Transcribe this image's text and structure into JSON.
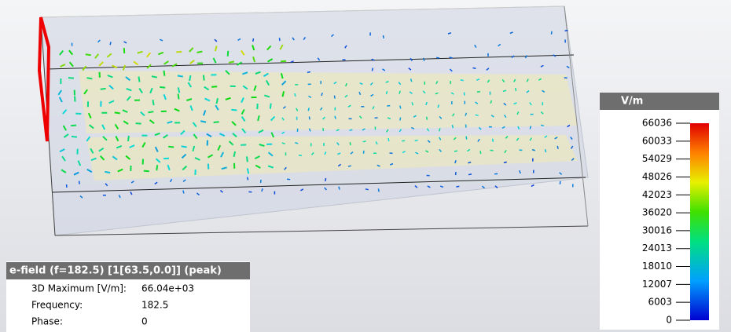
{
  "legend": {
    "title": "V/m",
    "ticks": [
      66036,
      60033,
      54029,
      48026,
      42023,
      36020,
      30016,
      24013,
      18010,
      12007,
      6003,
      0
    ]
  },
  "info": {
    "title": "e-field (f=182.5) [1[63.5,0.0]] (peak)",
    "rows": [
      [
        "3D Maximum [V/m]:",
        "66.04e+03"
      ],
      [
        "Frequency:",
        "182.5"
      ],
      [
        "Phase:",
        "0"
      ]
    ]
  }
}
